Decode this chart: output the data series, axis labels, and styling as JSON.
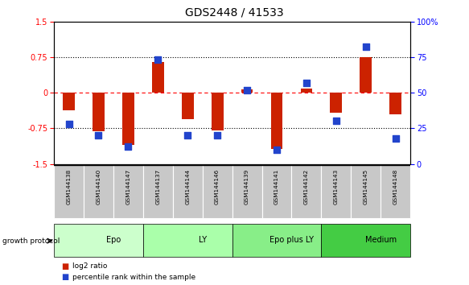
{
  "title": "GDS2448 / 41533",
  "samples": [
    "GSM144138",
    "GSM144140",
    "GSM144147",
    "GSM144137",
    "GSM144144",
    "GSM144146",
    "GSM144139",
    "GSM144141",
    "GSM144142",
    "GSM144143",
    "GSM144145",
    "GSM144148"
  ],
  "log2_ratio": [
    -0.38,
    -0.82,
    -1.1,
    0.65,
    -0.55,
    -0.8,
    0.07,
    -1.18,
    0.08,
    -0.42,
    0.75,
    -0.45
  ],
  "percentile_rank": [
    28,
    20,
    12,
    73,
    20,
    20,
    52,
    10,
    57,
    30,
    82,
    18
  ],
  "groups": [
    {
      "label": "Epo",
      "start": 0,
      "end": 3,
      "color": "#ccffcc"
    },
    {
      "label": "LY",
      "start": 3,
      "end": 6,
      "color": "#aaffaa"
    },
    {
      "label": "Epo plus LY",
      "start": 6,
      "end": 9,
      "color": "#88ee88"
    },
    {
      "label": "Medium",
      "start": 9,
      "end": 12,
      "color": "#44cc44"
    }
  ],
  "bar_color": "#cc2200",
  "dot_color": "#2244cc",
  "ylim_left": [
    -1.5,
    1.5
  ],
  "ylim_right": [
    0,
    100
  ],
  "y_left_ticks": [
    -1.5,
    -0.75,
    0,
    0.75,
    1.5
  ],
  "y_right_ticks": [
    0,
    25,
    50,
    75,
    100
  ],
  "bar_width": 0.4,
  "dot_size": 40
}
